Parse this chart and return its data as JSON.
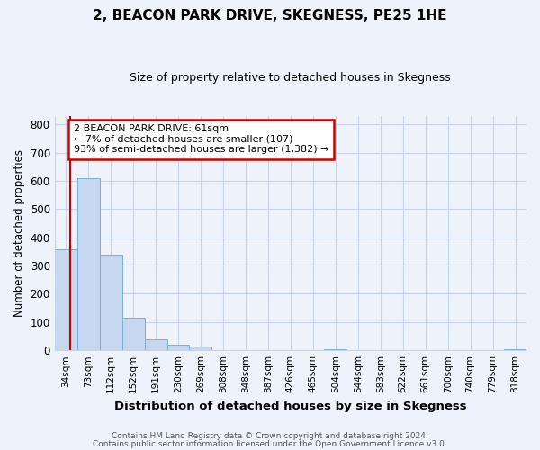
{
  "title": "2, BEACON PARK DRIVE, SKEGNESS, PE25 1HE",
  "subtitle": "Size of property relative to detached houses in Skegness",
  "xlabel": "Distribution of detached houses by size in Skegness",
  "ylabel": "Number of detached properties",
  "bar_labels": [
    "34sqm",
    "73sqm",
    "112sqm",
    "152sqm",
    "191sqm",
    "230sqm",
    "269sqm",
    "308sqm",
    "348sqm",
    "387sqm",
    "426sqm",
    "465sqm",
    "504sqm",
    "544sqm",
    "583sqm",
    "622sqm",
    "661sqm",
    "700sqm",
    "740sqm",
    "779sqm",
    "818sqm"
  ],
  "bar_values": [
    357,
    611,
    340,
    114,
    39,
    20,
    13,
    2,
    0,
    0,
    0,
    0,
    5,
    0,
    0,
    0,
    0,
    0,
    0,
    0,
    5
  ],
  "bar_color": "#c5d8f0",
  "bar_edge_color": "#7badd4",
  "ylim": [
    0,
    830
  ],
  "yticks": [
    0,
    100,
    200,
    300,
    400,
    500,
    600,
    700,
    800
  ],
  "annotation_line1": "2 BEACON PARK DRIVE: 61sqm",
  "annotation_line2": "← 7% of detached houses are smaller (107)",
  "annotation_line3": "93% of semi-detached houses are larger (1,382) →",
  "footer1": "Contains HM Land Registry data © Crown copyright and database right 2024.",
  "footer2": "Contains public sector information licensed under the Open Government Licence v3.0.",
  "bg_color": "#eef2fb",
  "grid_color": "#c8d4e8",
  "annotation_box_color": "#ffffff",
  "annotation_border_color": "#cc0000",
  "red_line_color": "#cc0000"
}
